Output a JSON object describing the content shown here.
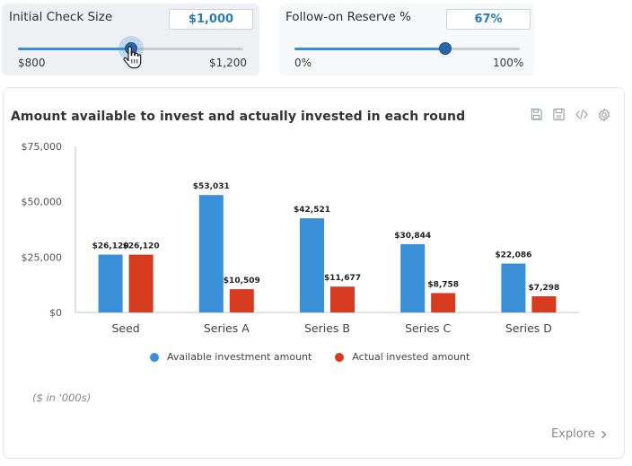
{
  "controls": {
    "initial_check": {
      "label": "Initial Check Size",
      "value": "$1,000",
      "min_label": "$800",
      "max_label": "$1,200",
      "fill_fraction": 0.5
    },
    "follow_on_reserve": {
      "label": "Follow-on Reserve %",
      "value": "67%",
      "min_label": "0%",
      "max_label": "100%",
      "fill_fraction": 0.67
    }
  },
  "toolbar": {
    "icons": [
      "save-icon",
      "export-icon",
      "code-icon",
      "gear-icon"
    ]
  },
  "note": "($ in '000s)",
  "explore_label": "Explore",
  "colors": {
    "available": "#3a8fd9",
    "invested": "#d63a1f",
    "slider_accent": "#3b8fd8"
  },
  "chart_data": {
    "type": "bar",
    "title": "Amount available to invest and actually invested in each round",
    "categories": [
      "Seed",
      "Series A",
      "Series B",
      "Series C",
      "Series D"
    ],
    "series": [
      {
        "name": "Available investment amount",
        "values": [
          26120,
          53031,
          42521,
          30844,
          22086
        ],
        "labels": [
          "$26,120",
          "$53,031",
          "$42,521",
          "$30,844",
          "$22,086"
        ]
      },
      {
        "name": "Actual invested amount",
        "values": [
          26120,
          10509,
          11677,
          8758,
          7298
        ],
        "labels": [
          "$26,120",
          "$10,509",
          "$11,677",
          "$8,758",
          "$7,298"
        ]
      }
    ],
    "y_ticks": [
      "$0",
      "$25,000",
      "$50,000",
      "$75,000"
    ],
    "y_tick_values": [
      0,
      25000,
      50000,
      75000
    ],
    "ylim": [
      0,
      75000
    ],
    "legend_position": "bottom",
    "grid": false
  }
}
